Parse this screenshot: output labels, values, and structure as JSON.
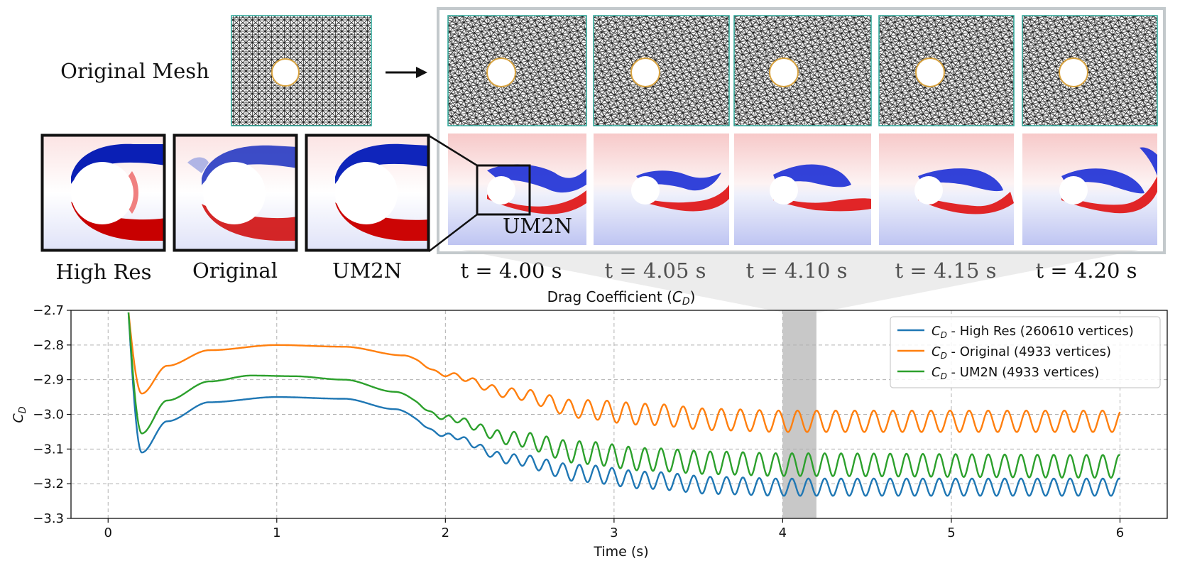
{
  "figure": {
    "original_mesh_label": "Original Mesh",
    "zoom_labels": [
      "High Res",
      "Original",
      "UM2N"
    ],
    "inset_label": "UM2N",
    "time_labels": [
      "t = 4.00 s",
      "t = 4.05 s",
      "t = 4.10 s",
      "t = 4.15 s",
      "t = 4.20 s"
    ]
  },
  "colors": {
    "high_res": "#1f77b4",
    "original": "#ff7f0e",
    "um2n": "#2ca02c",
    "highlight": "#c8c8c8",
    "frame": "#c3c9cc",
    "mesh_boundary": "#2ca89a",
    "cylinder_outline": "#d9a441",
    "vort_red": "#d40000",
    "vort_blue": "#0018c8"
  },
  "chart_data": {
    "type": "line",
    "title": "Drag Coefficient (",
    "title_symbol": "C",
    "title_subscript": "D",
    "title_end": ")",
    "xlabel": "Time (s)",
    "ylabel_symbol": "C",
    "ylabel_subscript": "D",
    "xlim": [
      -0.22,
      6.28
    ],
    "ylim": [
      -3.3,
      -2.7
    ],
    "xticks": [
      0,
      1,
      2,
      3,
      4,
      5,
      6
    ],
    "yticks": [
      -2.7,
      -2.8,
      -2.9,
      -3.0,
      -3.1,
      -3.2,
      -3.3
    ],
    "xtick_labels": [
      "0",
      "1",
      "2",
      "3",
      "4",
      "5",
      "6"
    ],
    "ytick_labels": [
      "−2.7",
      "−2.8",
      "−2.9",
      "−3.0",
      "−3.1",
      "−3.2",
      "−3.3"
    ],
    "grid": true,
    "highlight_band": [
      4.0,
      4.2
    ],
    "legend_position": "top-right",
    "series": [
      {
        "key": "high_res",
        "label_symbol": "C",
        "label_subscript": "D",
        "label_text": " - High Res (260610 vertices)",
        "initial_drop": [
          [
            0.12,
            -2.7
          ],
          [
            0.2,
            -3.11
          ]
        ],
        "points": [
          [
            0.2,
            -3.11
          ],
          [
            0.35,
            -3.02
          ],
          [
            0.6,
            -2.965
          ],
          [
            1.0,
            -2.95
          ],
          [
            1.4,
            -2.955
          ],
          [
            1.7,
            -2.985
          ],
          [
            2.0,
            -3.06
          ],
          [
            2.4,
            -3.13
          ],
          [
            2.8,
            -3.17
          ],
          [
            3.2,
            -3.19
          ],
          [
            3.6,
            -3.205
          ],
          [
            4.0,
            -3.21
          ],
          [
            6.0,
            -3.21
          ]
        ],
        "oscillation": {
          "start": 1.8,
          "full": 2.8,
          "amplitude": 0.025,
          "period": 0.097
        }
      },
      {
        "key": "original",
        "label_symbol": "C",
        "label_subscript": "D",
        "label_text": " - Original (4933 vertices)",
        "initial_drop": [
          [
            0.12,
            -2.7
          ],
          [
            0.2,
            -2.94
          ]
        ],
        "points": [
          [
            0.2,
            -2.94
          ],
          [
            0.35,
            -2.86
          ],
          [
            0.6,
            -2.815
          ],
          [
            1.0,
            -2.8
          ],
          [
            1.4,
            -2.805
          ],
          [
            1.75,
            -2.83
          ],
          [
            2.0,
            -2.885
          ],
          [
            2.4,
            -2.94
          ],
          [
            2.8,
            -2.985
          ],
          [
            3.2,
            -3.0
          ],
          [
            3.6,
            -3.015
          ],
          [
            4.0,
            -3.02
          ],
          [
            6.0,
            -3.02
          ]
        ],
        "oscillation": {
          "start": 1.8,
          "full": 3.0,
          "amplitude": 0.031,
          "period": 0.113
        }
      },
      {
        "key": "um2n",
        "label_symbol": "C",
        "label_subscript": "D",
        "label_text": " - UM2N (4933 vertices)",
        "initial_drop": [
          [
            0.12,
            -2.7
          ],
          [
            0.2,
            -3.055
          ]
        ],
        "points": [
          [
            0.2,
            -3.055
          ],
          [
            0.35,
            -2.96
          ],
          [
            0.6,
            -2.905
          ],
          [
            0.85,
            -2.888
          ],
          [
            1.1,
            -2.89
          ],
          [
            1.4,
            -2.9
          ],
          [
            1.7,
            -2.935
          ],
          [
            2.0,
            -3.01
          ],
          [
            2.4,
            -3.07
          ],
          [
            2.8,
            -3.11
          ],
          [
            3.2,
            -3.13
          ],
          [
            3.6,
            -3.14
          ],
          [
            4.0,
            -3.145
          ],
          [
            6.0,
            -3.15
          ]
        ],
        "oscillation": {
          "start": 1.8,
          "full": 2.8,
          "amplitude": 0.033,
          "period": 0.097
        }
      }
    ]
  }
}
